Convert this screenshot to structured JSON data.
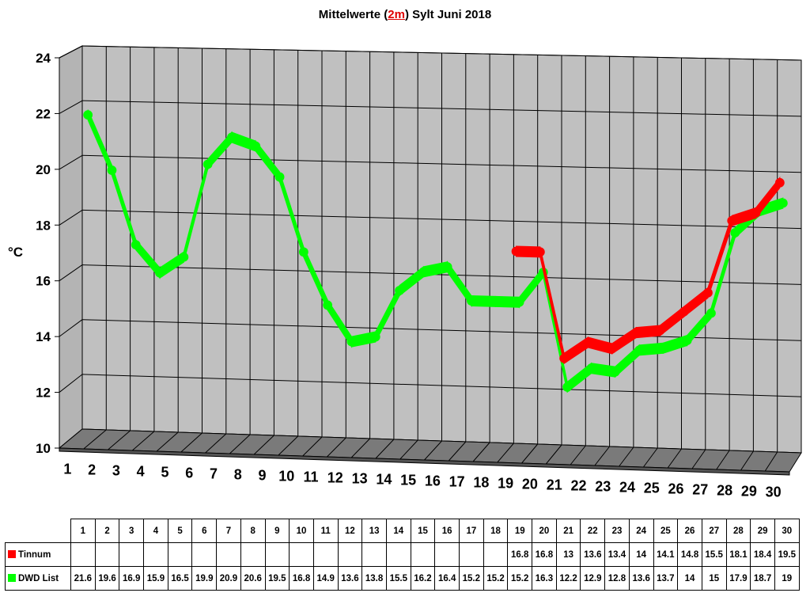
{
  "chart_data": {
    "type": "line",
    "title_parts": [
      "Mittelwerte (",
      "2m",
      ") Sylt Juni 2018"
    ],
    "ylabel": "°C",
    "xlabel": "",
    "ylim": [
      10,
      24
    ],
    "yticks": [
      "10",
      "12",
      "14",
      "16",
      "18",
      "20",
      "22",
      "24"
    ],
    "categories": [
      "1",
      "2",
      "3",
      "4",
      "5",
      "6",
      "7",
      "8",
      "9",
      "10",
      "11",
      "12",
      "13",
      "14",
      "15",
      "16",
      "17",
      "18",
      "19",
      "20",
      "21",
      "22",
      "23",
      "24",
      "25",
      "26",
      "27",
      "28",
      "29",
      "30"
    ],
    "grid": true,
    "series": [
      {
        "name": "Tinnum",
        "color": "#ff0000",
        "values": [
          null,
          null,
          null,
          null,
          null,
          null,
          null,
          null,
          null,
          null,
          null,
          null,
          null,
          null,
          null,
          null,
          null,
          null,
          16.8,
          16.8,
          13,
          13.6,
          13.4,
          14,
          14.1,
          14.8,
          15.5,
          18.1,
          18.4,
          19.5
        ]
      },
      {
        "name": "DWD List",
        "color": "#00ff00",
        "values": [
          21.6,
          19.6,
          16.9,
          15.9,
          16.5,
          19.9,
          20.9,
          20.6,
          19.5,
          16.8,
          14.9,
          13.6,
          13.8,
          15.5,
          16.2,
          16.4,
          15.2,
          15.2,
          15.2,
          16.3,
          12.2,
          12.9,
          12.8,
          13.6,
          13.7,
          14,
          15,
          17.9,
          18.7,
          19
        ]
      }
    ],
    "table": {
      "headers": [
        "1",
        "2",
        "3",
        "4",
        "5",
        "6",
        "7",
        "8",
        "9",
        "10",
        "11",
        "12",
        "13",
        "14",
        "15",
        "16",
        "17",
        "18",
        "19",
        "20",
        "21",
        "22",
        "23",
        "24",
        "25",
        "26",
        "27",
        "28",
        "29",
        "30"
      ],
      "rows": [
        {
          "label": "Tinnum",
          "cells": [
            "",
            "",
            "",
            "",
            "",
            "",
            "",
            "",
            "",
            "",
            "",
            "",
            "",
            "",
            "",
            "",
            "",
            "",
            "16.8",
            "16.8",
            "13",
            "13.6",
            "13.4",
            "14",
            "14.1",
            "14.8",
            "15.5",
            "18.1",
            "18.4",
            "19.5"
          ]
        },
        {
          "label": "DWD List",
          "cells": [
            "21.6",
            "19.6",
            "16.9",
            "15.9",
            "16.5",
            "19.9",
            "20.9",
            "20.6",
            "19.5",
            "16.8",
            "14.9",
            "13.6",
            "13.8",
            "15.5",
            "16.2",
            "16.4",
            "15.2",
            "15.2",
            "15.2",
            "16.3",
            "12.2",
            "12.9",
            "12.8",
            "13.6",
            "13.7",
            "14",
            "15",
            "17.9",
            "18.7",
            "19"
          ]
        }
      ]
    }
  }
}
